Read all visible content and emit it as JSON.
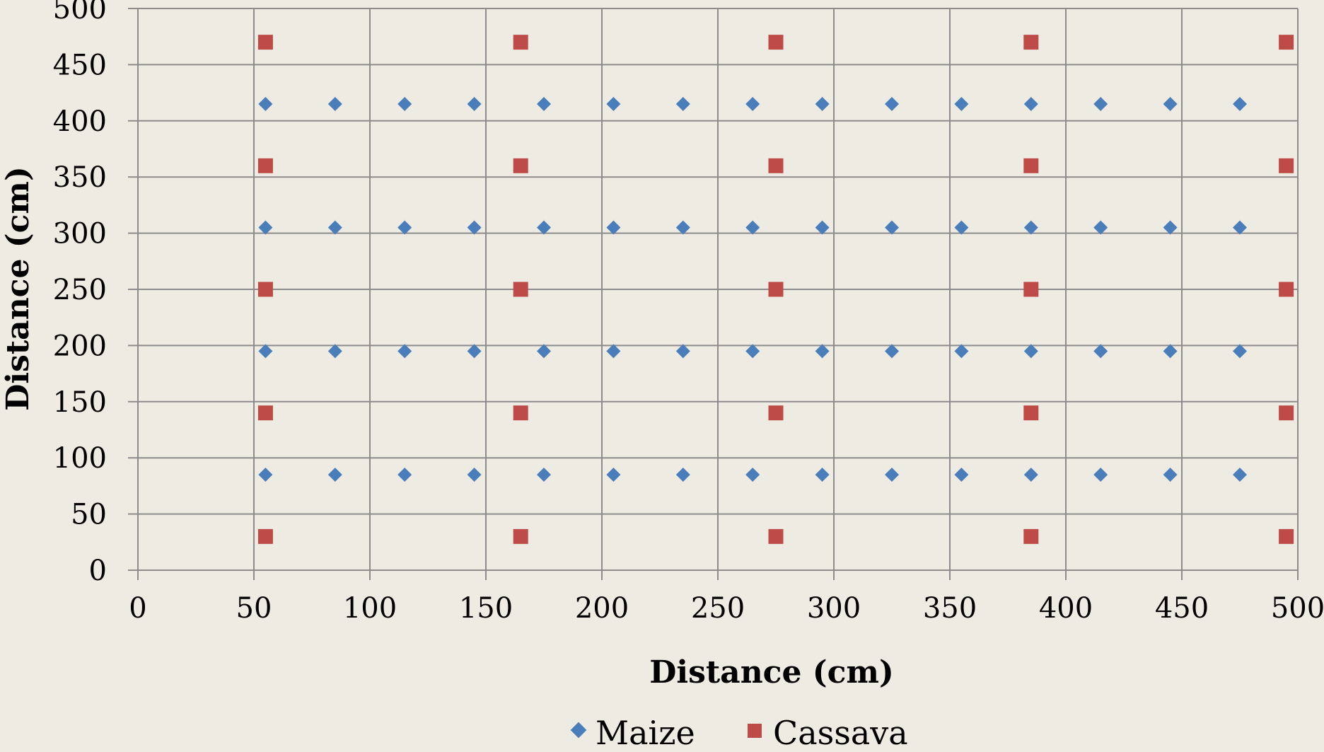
{
  "chart_data": {
    "type": "scatter",
    "title": "",
    "xlabel": "Distance (cm)",
    "ylabel": "Distance (cm)",
    "xlim": [
      0,
      500
    ],
    "ylim": [
      0,
      500
    ],
    "x_ticks": [
      "0",
      "50",
      "100",
      "150",
      "200",
      "250",
      "300",
      "350",
      "400",
      "450",
      "500"
    ],
    "y_ticks": [
      "0",
      "50",
      "100",
      "150",
      "200",
      "250",
      "300",
      "350",
      "400",
      "450",
      "500"
    ],
    "grid": true,
    "legend_position": "bottom",
    "series": [
      {
        "name": "Maize",
        "marker": "diamond",
        "color": "#4a7ebb",
        "points": [
          [
            55,
            85
          ],
          [
            85,
            85
          ],
          [
            115,
            85
          ],
          [
            145,
            85
          ],
          [
            175,
            85
          ],
          [
            205,
            85
          ],
          [
            235,
            85
          ],
          [
            265,
            85
          ],
          [
            295,
            85
          ],
          [
            325,
            85
          ],
          [
            355,
            85
          ],
          [
            385,
            85
          ],
          [
            415,
            85
          ],
          [
            445,
            85
          ],
          [
            475,
            85
          ],
          [
            55,
            195
          ],
          [
            85,
            195
          ],
          [
            115,
            195
          ],
          [
            145,
            195
          ],
          [
            175,
            195
          ],
          [
            205,
            195
          ],
          [
            235,
            195
          ],
          [
            265,
            195
          ],
          [
            295,
            195
          ],
          [
            325,
            195
          ],
          [
            355,
            195
          ],
          [
            385,
            195
          ],
          [
            415,
            195
          ],
          [
            445,
            195
          ],
          [
            475,
            195
          ],
          [
            55,
            305
          ],
          [
            85,
            305
          ],
          [
            115,
            305
          ],
          [
            145,
            305
          ],
          [
            175,
            305
          ],
          [
            205,
            305
          ],
          [
            235,
            305
          ],
          [
            265,
            305
          ],
          [
            295,
            305
          ],
          [
            325,
            305
          ],
          [
            355,
            305
          ],
          [
            385,
            305
          ],
          [
            415,
            305
          ],
          [
            445,
            305
          ],
          [
            475,
            305
          ],
          [
            55,
            415
          ],
          [
            85,
            415
          ],
          [
            115,
            415
          ],
          [
            145,
            415
          ],
          [
            175,
            415
          ],
          [
            205,
            415
          ],
          [
            235,
            415
          ],
          [
            265,
            415
          ],
          [
            295,
            415
          ],
          [
            325,
            415
          ],
          [
            355,
            415
          ],
          [
            385,
            415
          ],
          [
            415,
            415
          ],
          [
            445,
            415
          ],
          [
            475,
            415
          ]
        ]
      },
      {
        "name": "Cassava",
        "marker": "square",
        "color": "#be4b48",
        "points": [
          [
            55,
            30
          ],
          [
            165,
            30
          ],
          [
            275,
            30
          ],
          [
            385,
            30
          ],
          [
            495,
            30
          ],
          [
            55,
            140
          ],
          [
            165,
            140
          ],
          [
            275,
            140
          ],
          [
            385,
            140
          ],
          [
            495,
            140
          ],
          [
            55,
            250
          ],
          [
            165,
            250
          ],
          [
            275,
            250
          ],
          [
            385,
            250
          ],
          [
            495,
            250
          ],
          [
            55,
            360
          ],
          [
            165,
            360
          ],
          [
            275,
            360
          ],
          [
            385,
            360
          ],
          [
            495,
            360
          ],
          [
            55,
            470
          ],
          [
            165,
            470
          ],
          [
            275,
            470
          ],
          [
            385,
            470
          ],
          [
            495,
            470
          ]
        ]
      }
    ]
  }
}
